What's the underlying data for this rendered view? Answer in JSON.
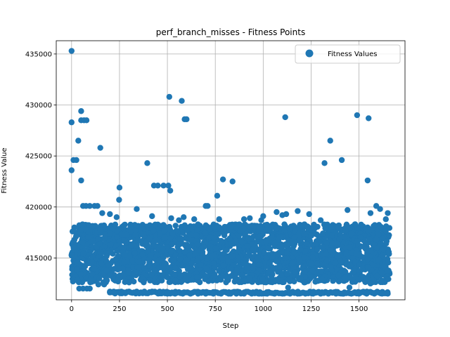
{
  "chart_data": {
    "type": "scatter",
    "title": "perf_branch_misses - Fitness Points",
    "xlabel": "Step",
    "ylabel": "Fitness Value",
    "xlim": [
      -80,
      1740
    ],
    "ylim": [
      410900,
      436300
    ],
    "xticks": [
      0,
      250,
      500,
      750,
      1000,
      1250,
      1500
    ],
    "xtick_labels": [
      "0",
      "250",
      "500",
      "750",
      "1000",
      "1250",
      "1500"
    ],
    "yticks": [
      415000,
      420000,
      425000,
      430000,
      435000
    ],
    "ytick_labels": [
      "415000",
      "420000",
      "425000",
      "430000",
      "435000"
    ],
    "grid": true,
    "legend_position": "top-right",
    "series": [
      {
        "name": "Fitness Values",
        "color": "#1f77b4",
        "points": [
          [
            0,
            435300
          ],
          [
            0,
            428300
          ],
          [
            0,
            423600
          ],
          [
            5,
            417600
          ],
          [
            0,
            415300
          ],
          [
            3,
            413900
          ],
          [
            10,
            416000
          ],
          [
            10,
            424600
          ],
          [
            25,
            424600
          ],
          [
            35,
            426500
          ],
          [
            50,
            429400
          ],
          [
            50,
            428500
          ],
          [
            65,
            428500
          ],
          [
            78,
            428500
          ],
          [
            50,
            422600
          ],
          [
            60,
            420100
          ],
          [
            75,
            420100
          ],
          [
            95,
            420100
          ],
          [
            120,
            420100
          ],
          [
            135,
            420100
          ],
          [
            150,
            425800
          ],
          [
            250,
            421900
          ],
          [
            248,
            420700
          ],
          [
            160,
            419400
          ],
          [
            200,
            419300
          ],
          [
            235,
            419000
          ],
          [
            340,
            419800
          ],
          [
            395,
            424300
          ],
          [
            420,
            419100
          ],
          [
            430,
            422100
          ],
          [
            450,
            422100
          ],
          [
            480,
            422100
          ],
          [
            505,
            422100
          ],
          [
            515,
            421600
          ],
          [
            510,
            430800
          ],
          [
            575,
            430400
          ],
          [
            590,
            428600
          ],
          [
            600,
            428600
          ],
          [
            520,
            418900
          ],
          [
            560,
            418700
          ],
          [
            585,
            419000
          ],
          [
            640,
            418800
          ],
          [
            700,
            420100
          ],
          [
            710,
            420100
          ],
          [
            760,
            421100
          ],
          [
            790,
            422700
          ],
          [
            840,
            422500
          ],
          [
            770,
            418800
          ],
          [
            900,
            418800
          ],
          [
            930,
            418900
          ],
          [
            990,
            418700
          ],
          [
            1000,
            419100
          ],
          [
            1070,
            419500
          ],
          [
            1100,
            419200
          ],
          [
            1120,
            419300
          ],
          [
            1115,
            428800
          ],
          [
            1180,
            419600
          ],
          [
            1240,
            419300
          ],
          [
            1300,
            418700
          ],
          [
            1320,
            424300
          ],
          [
            1350,
            426500
          ],
          [
            1410,
            424600
          ],
          [
            1440,
            419700
          ],
          [
            1480,
            418300
          ],
          [
            1490,
            429000
          ],
          [
            1550,
            428700
          ],
          [
            1545,
            422600
          ],
          [
            1560,
            419400
          ],
          [
            1590,
            420100
          ],
          [
            1610,
            419800
          ],
          [
            1650,
            419400
          ],
          [
            1640,
            418800
          ],
          [
            40,
            412000
          ],
          [
            60,
            412000
          ],
          [
            80,
            412000
          ],
          [
            95,
            412000
          ],
          [
            140,
            412400
          ],
          [
            170,
            412400
          ],
          [
            200,
            411700
          ],
          [
            220,
            411700
          ],
          [
            260,
            411700
          ],
          [
            300,
            411700
          ],
          [
            340,
            411700
          ],
          [
            380,
            411700
          ],
          [
            420,
            411700
          ],
          [
            460,
            411700
          ],
          [
            500,
            411500
          ],
          [
            540,
            411500
          ],
          [
            580,
            411500
          ],
          [
            620,
            411500
          ],
          [
            660,
            411500
          ],
          [
            700,
            411500
          ],
          [
            740,
            411500
          ],
          [
            780,
            411500
          ],
          [
            820,
            411500
          ],
          [
            860,
            411500
          ],
          [
            900,
            411500
          ],
          [
            940,
            411500
          ],
          [
            980,
            411500
          ],
          [
            1020,
            411500
          ],
          [
            1060,
            411500
          ],
          [
            1100,
            411500
          ],
          [
            1140,
            411500
          ],
          [
            1180,
            411500
          ],
          [
            1220,
            411500
          ],
          [
            1260,
            411500
          ],
          [
            1300,
            411500
          ],
          [
            1340,
            411500
          ],
          [
            1380,
            411500
          ],
          [
            1420,
            411500
          ],
          [
            1460,
            411500
          ],
          [
            1500,
            411500
          ],
          [
            1540,
            411500
          ],
          [
            1580,
            411500
          ],
          [
            1620,
            411500
          ],
          [
            1650,
            411500
          ],
          [
            1130,
            412100
          ],
          [
            1450,
            412100
          ],
          [
            1560,
            412500
          ],
          [
            300,
            412600
          ]
        ]
      }
    ],
    "dense_cluster": {
      "x_range": [
        0,
        1660
      ],
      "y_range": [
        412600,
        418300
      ],
      "description_fill": true
    }
  }
}
